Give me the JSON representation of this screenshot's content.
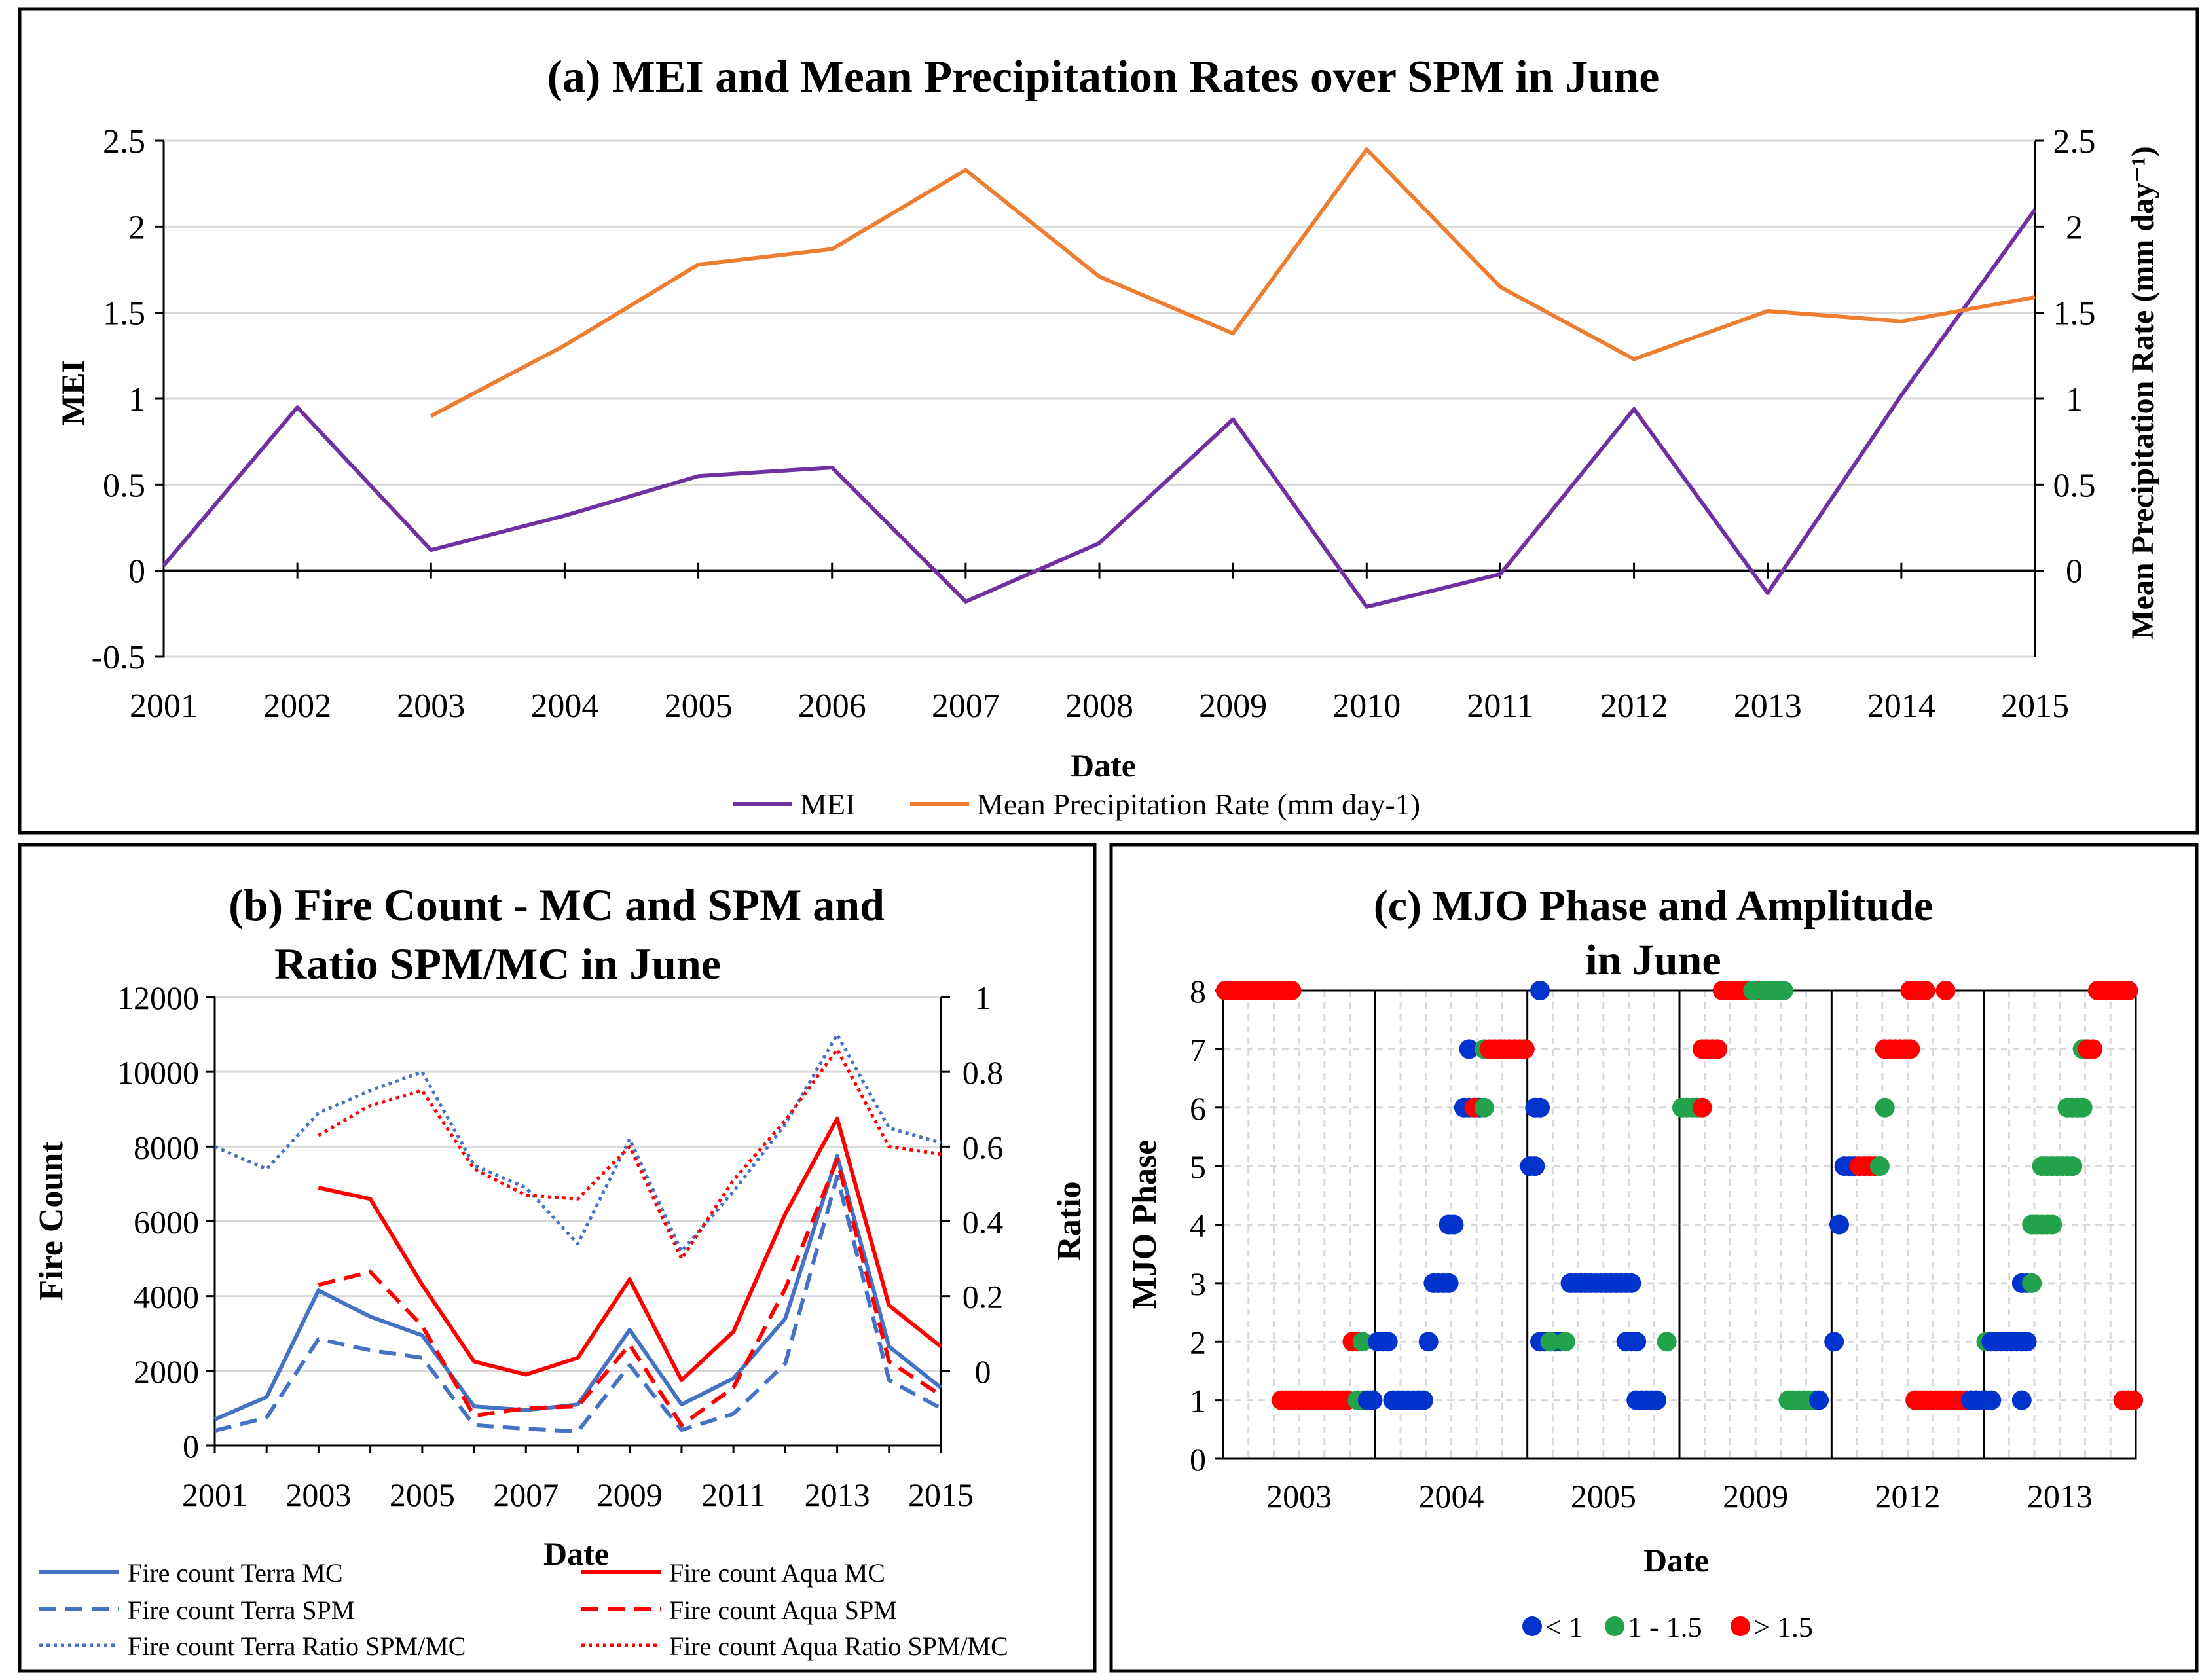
{
  "colors": {
    "mei": "#7030A0",
    "precip": "#ED7D31",
    "terra": "#4472C4",
    "aqua": "#FF0000",
    "amp_low": "#0033CC",
    "amp_mid": "#22A24A",
    "amp_high": "#FF0000",
    "grid": "#D9D9D9",
    "frame": "#000000"
  },
  "chart_data": [
    {
      "id": "a",
      "type": "line",
      "title": "(a) MEI and Mean Precipitation Rates over SPM in June",
      "xlabel": "Date",
      "ylabel_left": "MEI",
      "ylabel_right": "Mean Precipitation Rate (mm day⁻¹)",
      "x": [
        2001,
        2002,
        2003,
        2004,
        2005,
        2006,
        2007,
        2008,
        2009,
        2010,
        2011,
        2012,
        2013,
        2014,
        2015
      ],
      "x_tick_labels": [
        "2001",
        "2002",
        "2003",
        "2004",
        "2005",
        "2006",
        "2007",
        "2008",
        "2009",
        "2010",
        "2011",
        "2012",
        "2013",
        "2014",
        "2015"
      ],
      "ylim_left": [
        -0.5,
        2.5
      ],
      "y_ticks_left": [
        "-0.5",
        "0",
        "0.5",
        "1",
        "1.5",
        "2",
        "2.5"
      ],
      "ylim_right": [
        -0.5,
        2.5
      ],
      "y_ticks_right": [
        "0",
        "0.5",
        "1",
        "1.5",
        "2",
        "2.5"
      ],
      "series": [
        {
          "name": "MEI",
          "axis": "left",
          "values": [
            0.03,
            0.95,
            0.12,
            0.32,
            0.55,
            0.6,
            -0.18,
            0.16,
            0.88,
            -0.21,
            -0.02,
            0.94,
            -0.13,
            1.02,
            2.1
          ]
        },
        {
          "name": "Mean Precipitation Rate (mm day-1)",
          "axis": "right",
          "values": [
            null,
            null,
            0.9,
            1.31,
            1.78,
            1.87,
            2.33,
            1.71,
            1.38,
            2.45,
            1.65,
            1.23,
            1.51,
            1.45,
            1.59
          ]
        }
      ],
      "legend": [
        "MEI",
        "Mean Precipitation Rate (mm day-1)"
      ],
      "legend_position": "bottom"
    },
    {
      "id": "b",
      "type": "line",
      "title_line1": "(b) Fire Count - MC and SPM and",
      "title_line2": "Ratio SPM/MC in June",
      "xlabel": "Date",
      "ylabel_left": "Fire Count",
      "ylabel_right": "Ratio",
      "x": [
        2001,
        2002,
        2003,
        2004,
        2005,
        2006,
        2007,
        2008,
        2009,
        2010,
        2011,
        2012,
        2013,
        2014,
        2015
      ],
      "x_tick_labels": [
        "2001",
        "2003",
        "2005",
        "2007",
        "2009",
        "2011",
        "2013",
        "2015"
      ],
      "ylim_left": [
        0,
        12000
      ],
      "y_ticks_left": [
        "0",
        "2000",
        "4000",
        "6000",
        "8000",
        "10000",
        "12000"
      ],
      "ylim_right": [
        -0.2,
        1.0
      ],
      "y_ticks_right": [
        "0",
        "0.2",
        "0.4",
        "0.6",
        "0.8",
        "1"
      ],
      "series": [
        {
          "name": "Fire count Terra MC",
          "axis": "left",
          "style": "solid",
          "color": "terra",
          "values": [
            700,
            1300,
            4150,
            3450,
            2950,
            1050,
            950,
            1100,
            3100,
            1100,
            1800,
            3400,
            7750,
            2650,
            1550
          ]
        },
        {
          "name": "Fire count Terra SPM",
          "axis": "left",
          "style": "dashed",
          "color": "terra",
          "values": [
            400,
            750,
            2850,
            2550,
            2350,
            550,
            450,
            380,
            2150,
            420,
            850,
            2200,
            7200,
            1750,
            1000
          ]
        },
        {
          "name": "Fire count Terra Ratio SPM/MC",
          "axis": "right",
          "style": "dotted",
          "color": "terra",
          "values": [
            0.6,
            0.54,
            0.69,
            0.75,
            0.8,
            0.55,
            0.49,
            0.34,
            0.62,
            0.32,
            0.48,
            0.66,
            0.9,
            0.65,
            0.61
          ]
        },
        {
          "name": "Fire count Aqua MC",
          "axis": "left",
          "style": "solid",
          "color": "aqua",
          "values": [
            null,
            null,
            6900,
            6600,
            4300,
            2250,
            1900,
            2350,
            4450,
            1750,
            3050,
            6200,
            8750,
            3750,
            2650
          ]
        },
        {
          "name": "Fire count Aqua SPM",
          "axis": "left",
          "style": "dashed",
          "color": "aqua",
          "values": [
            null,
            null,
            4300,
            4650,
            3200,
            800,
            1000,
            1050,
            2700,
            550,
            1550,
            4200,
            7650,
            2250,
            1350
          ]
        },
        {
          "name": "Fire count Aqua Ratio SPM/MC",
          "axis": "right",
          "style": "dotted",
          "color": "aqua",
          "values": [
            null,
            null,
            0.63,
            0.71,
            0.75,
            0.54,
            0.47,
            0.46,
            0.6,
            0.3,
            0.51,
            0.67,
            0.86,
            0.6,
            0.58
          ]
        }
      ],
      "legend": [
        "Fire count Terra MC",
        "Fire count Aqua MC",
        "Fire count Terra SPM",
        "Fire count Aqua SPM",
        "Fire count Terra Ratio SPM/MC",
        "Fire count Aqua Ratio SPM/MC"
      ],
      "legend_position": "bottom"
    },
    {
      "id": "c",
      "type": "scatter",
      "title_line1": "(c) MJO Phase and Amplitude",
      "title_line2": "in June",
      "xlabel": "Date",
      "ylabel": "MJO Phase",
      "ylim": [
        0,
        8
      ],
      "y_ticks": [
        "0",
        "1",
        "2",
        "3",
        "4",
        "5",
        "6",
        "7",
        "8"
      ],
      "segments": [
        "2003",
        "2004",
        "2005",
        "2009",
        "2012",
        "2013"
      ],
      "days_per_segment": 30,
      "legend": [
        "< 1",
        "1 - 1.5",
        "> 1.5"
      ],
      "legend_position": "bottom",
      "points": [
        {
          "seg": 0,
          "days": [
            1,
            2,
            3,
            4,
            5,
            6,
            7,
            8,
            9,
            10,
            11,
            12,
            13,
            14
          ],
          "phase": 8,
          "amp": "> 1.5"
        },
        {
          "seg": 0,
          "days": [
            12,
            13,
            14,
            15,
            16,
            17,
            18,
            19,
            20,
            21,
            22,
            23,
            24,
            25
          ],
          "phase": 1,
          "amp": "> 1.5"
        },
        {
          "seg": 0,
          "days": [
            26,
            27
          ],
          "phase": 2,
          "amp": "> 1.5"
        },
        {
          "seg": 0,
          "days": [
            28
          ],
          "phase": 2,
          "amp": "1 - 1.5"
        },
        {
          "seg": 0,
          "days": [
            27,
            28
          ],
          "phase": 1,
          "amp": "1 - 1.5"
        },
        {
          "seg": 0,
          "days": [
            29,
            30
          ],
          "phase": 1,
          "amp": "< 1"
        },
        {
          "seg": 1,
          "days": [
            1,
            2,
            3
          ],
          "phase": 2,
          "amp": "< 1"
        },
        {
          "seg": 1,
          "days": [
            4,
            5,
            6,
            7,
            8,
            9,
            10
          ],
          "phase": 1,
          "amp": "< 1"
        },
        {
          "seg": 1,
          "days": [
            11
          ],
          "phase": 2,
          "amp": "< 1"
        },
        {
          "seg": 1,
          "days": [
            12,
            13,
            14,
            15
          ],
          "phase": 3,
          "amp": "< 1"
        },
        {
          "seg": 1,
          "days": [
            15,
            16
          ],
          "phase": 4,
          "amp": "< 1"
        },
        {
          "seg": 1,
          "days": [
            18,
            19,
            20,
            21
          ],
          "phase": 6,
          "amp": "< 1"
        },
        {
          "seg": 1,
          "days": [
            20
          ],
          "phase": 6,
          "amp": "> 1.5"
        },
        {
          "seg": 1,
          "days": [
            22
          ],
          "phase": 6,
          "amp": "1 - 1.5"
        },
        {
          "seg": 1,
          "days": [
            19
          ],
          "phase": 7,
          "amp": "< 1"
        },
        {
          "seg": 1,
          "days": [
            22
          ],
          "phase": 7,
          "amp": "1 - 1.5"
        },
        {
          "seg": 1,
          "days": [
            23,
            24,
            25,
            26,
            27,
            28,
            29,
            30
          ],
          "phase": 7,
          "amp": "> 1.5"
        },
        {
          "seg": 2,
          "days": [
            1,
            2
          ],
          "phase": 5,
          "amp": "< 1"
        },
        {
          "seg": 2,
          "days": [
            2,
            3
          ],
          "phase": 6,
          "amp": "< 1"
        },
        {
          "seg": 2,
          "days": [
            3
          ],
          "phase": 8,
          "amp": "< 1"
        },
        {
          "seg": 2,
          "days": [
            3,
            4,
            5,
            6,
            7
          ],
          "phase": 2,
          "amp": "< 1"
        },
        {
          "seg": 2,
          "days": [
            5
          ],
          "phase": 2,
          "amp": "1 - 1.5"
        },
        {
          "seg": 2,
          "days": [
            8
          ],
          "phase": 2,
          "amp": "1 - 1.5"
        },
        {
          "seg": 2,
          "days": [
            9,
            10,
            11,
            12,
            13,
            14,
            15,
            16,
            17,
            18,
            19,
            20,
            21
          ],
          "phase": 3,
          "amp": "< 1"
        },
        {
          "seg": 2,
          "days": [
            20,
            21,
            22
          ],
          "phase": 2,
          "amp": "< 1"
        },
        {
          "seg": 2,
          "days": [
            22,
            23,
            24,
            25,
            26
          ],
          "phase": 1,
          "amp": "< 1"
        },
        {
          "seg": 2,
          "days": [
            28
          ],
          "phase": 2,
          "amp": "1 - 1.5"
        },
        {
          "seg": 3,
          "days": [
            1,
            2,
            3,
            4
          ],
          "phase": 6,
          "amp": "1 - 1.5"
        },
        {
          "seg": 3,
          "days": [
            5
          ],
          "phase": 6,
          "amp": "> 1.5"
        },
        {
          "seg": 3,
          "days": [
            5,
            6,
            7,
            8
          ],
          "phase": 7,
          "amp": "> 1.5"
        },
        {
          "seg": 3,
          "days": [
            9,
            10,
            11,
            12,
            13,
            14,
            15,
            16,
            17
          ],
          "phase": 8,
          "amp": "> 1.5"
        },
        {
          "seg": 3,
          "days": [
            15,
            17
          ],
          "phase": 8,
          "amp": "1 - 1.5"
        },
        {
          "seg": 3,
          "days": [
            18,
            19,
            20,
            21
          ],
          "phase": 8,
          "amp": "1 - 1.5"
        },
        {
          "seg": 3,
          "days": [
            22,
            23,
            24,
            25,
            26,
            27
          ],
          "phase": 1,
          "amp": "1 - 1.5"
        },
        {
          "seg": 3,
          "days": [
            28
          ],
          "phase": 1,
          "amp": "< 1"
        },
        {
          "seg": 4,
          "days": [
            1
          ],
          "phase": 2,
          "amp": "< 1"
        },
        {
          "seg": 4,
          "days": [
            2
          ],
          "phase": 4,
          "amp": "< 1"
        },
        {
          "seg": 4,
          "days": [
            3,
            4,
            5
          ],
          "phase": 5,
          "amp": "< 1"
        },
        {
          "seg": 4,
          "days": [
            6,
            7,
            8,
            9
          ],
          "phase": 5,
          "amp": "> 1.5"
        },
        {
          "seg": 4,
          "days": [
            10
          ],
          "phase": 5,
          "amp": "1 - 1.5"
        },
        {
          "seg": 4,
          "days": [
            11
          ],
          "phase": 6,
          "amp": "1 - 1.5"
        },
        {
          "seg": 4,
          "days": [
            11,
            12,
            13,
            14,
            15,
            16
          ],
          "phase": 7,
          "amp": "> 1.5"
        },
        {
          "seg": 4,
          "days": [
            16,
            17,
            18,
            19
          ],
          "phase": 8,
          "amp": "> 1.5"
        },
        {
          "seg": 4,
          "days": [
            23
          ],
          "phase": 8,
          "amp": "> 1.5"
        },
        {
          "seg": 4,
          "days": [
            17,
            18,
            19,
            20,
            21,
            22,
            23,
            24,
            25,
            26,
            27,
            28,
            29
          ],
          "phase": 1,
          "amp": "> 1.5"
        },
        {
          "seg": 4,
          "days": [
            28,
            29,
            30
          ],
          "phase": 1,
          "amp": "< 1"
        },
        {
          "seg": 5,
          "days": [
            1,
            2
          ],
          "phase": 1,
          "amp": "< 1"
        },
        {
          "seg": 5,
          "days": [
            1
          ],
          "phase": 2,
          "amp": "1 - 1.5"
        },
        {
          "seg": 5,
          "days": [
            2,
            3,
            4,
            5,
            6,
            7,
            8,
            9
          ],
          "phase": 2,
          "amp": "< 1"
        },
        {
          "seg": 5,
          "days": [
            8
          ],
          "phase": 1,
          "amp": "< 1"
        },
        {
          "seg": 5,
          "days": [
            8,
            9
          ],
          "phase": 3,
          "amp": "< 1"
        },
        {
          "seg": 5,
          "days": [
            10
          ],
          "phase": 3,
          "amp": "1 - 1.5"
        },
        {
          "seg": 5,
          "days": [
            10,
            11,
            12,
            13,
            14
          ],
          "phase": 4,
          "amp": "1 - 1.5"
        },
        {
          "seg": 5,
          "days": [
            12,
            13,
            14,
            15,
            16,
            17,
            18
          ],
          "phase": 5,
          "amp": "1 - 1.5"
        },
        {
          "seg": 5,
          "days": [
            17,
            18,
            19,
            20
          ],
          "phase": 6,
          "amp": "1 - 1.5"
        },
        {
          "seg": 5,
          "days": [
            20
          ],
          "phase": 7,
          "amp": "1 - 1.5"
        },
        {
          "seg": 5,
          "days": [
            21,
            22
          ],
          "phase": 7,
          "amp": "> 1.5"
        },
        {
          "seg": 5,
          "days": [
            23,
            24,
            25,
            26,
            27,
            28,
            29
          ],
          "phase": 8,
          "amp": "> 1.5"
        },
        {
          "seg": 5,
          "days": [
            28,
            29,
            30
          ],
          "phase": 1,
          "amp": "> 1.5"
        }
      ]
    }
  ]
}
